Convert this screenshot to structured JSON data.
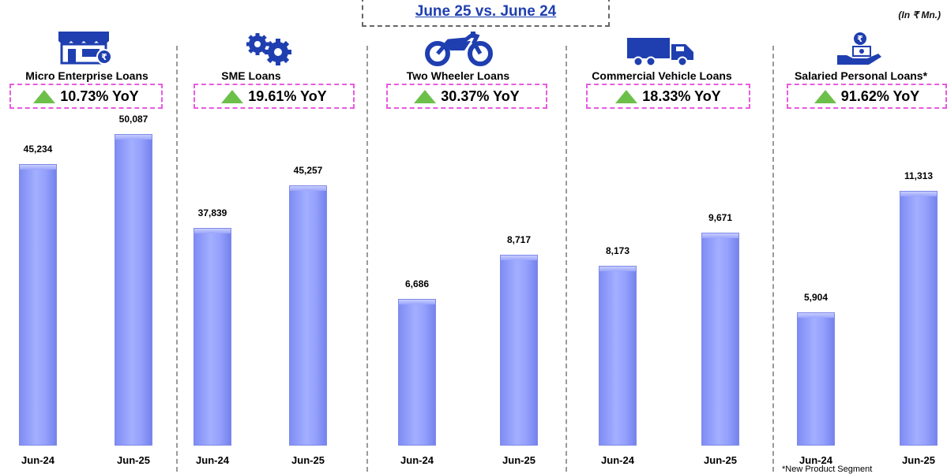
{
  "header": {
    "title": "June 25 vs. June 24",
    "unit": "(In ₹ Mn.)"
  },
  "footnote": "*New Product Segment",
  "chart_data": {
    "type": "bar",
    "title": "June 25 vs. June 24",
    "unit": "(In ₹ Mn.)",
    "categories": [
      "Jun-24",
      "Jun-25"
    ],
    "panels": [
      {
        "name": "Micro Enterprise Loans",
        "yoy": "10.73% YoY",
        "values": [
          45234,
          50087
        ],
        "labels": [
          "45,234",
          "50,087"
        ],
        "icon": "shop-icon"
      },
      {
        "name": "SME Loans",
        "yoy": "19.61% YoY",
        "values": [
          37839,
          45257
        ],
        "labels": [
          "37,839",
          "45,257"
        ],
        "icon": "gears-icon"
      },
      {
        "name": "Two Wheeler Loans",
        "yoy": "30.37% YoY",
        "values": [
          6686,
          8717
        ],
        "labels": [
          "6,686",
          "8,717"
        ],
        "icon": "motorcycle-icon"
      },
      {
        "name": "Commercial Vehicle Loans",
        "yoy": "18.33% YoY",
        "values": [
          8173,
          9671
        ],
        "labels": [
          "8,173",
          "9,671"
        ],
        "icon": "truck-icon"
      },
      {
        "name": "Salaried Personal Loans*",
        "yoy": "91.62% YoY",
        "values": [
          5904,
          11313
        ],
        "labels": [
          "5,904",
          "11,313"
        ],
        "icon": "salary-hand-icon"
      }
    ],
    "colors": {
      "bar": "#8f9bf8",
      "yoy_arrow": "#6cc04a",
      "yoy_border": "#e85be0",
      "title": "#1f3fb0",
      "icon": "#1f3fb0"
    }
  }
}
